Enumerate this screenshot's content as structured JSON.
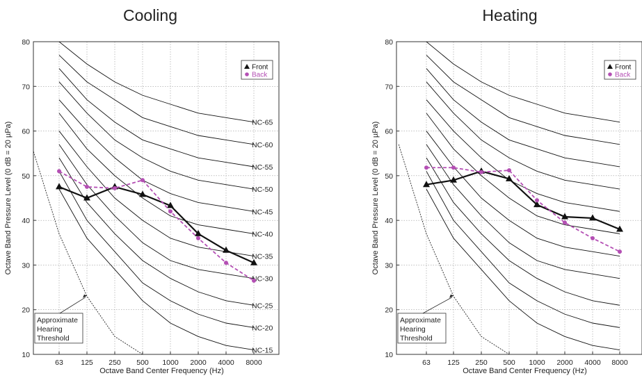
{
  "chart_data": [
    {
      "type": "line",
      "title": "Cooling",
      "xlabel": "Octave Band Center Frequency (Hz)",
      "ylabel": "Octave Band Pressure Level (0 dB = 20 µPa)",
      "categories": [
        "63",
        "125",
        "250",
        "500",
        "1000",
        "2000",
        "4000",
        "8000"
      ],
      "ylim": [
        10,
        80
      ],
      "yticks": [
        "10",
        "20",
        "30",
        "40",
        "50",
        "60",
        "70",
        "80"
      ],
      "grid": true,
      "legend_position": "top-right",
      "series": [
        {
          "name": "Front",
          "color": "#111111",
          "marker": "triangle",
          "style": "solid",
          "values": [
            47.5,
            45,
            47.5,
            45.8,
            43.3,
            37,
            33.3,
            30.5
          ]
        },
        {
          "name": "Back",
          "color": "#b44fb4",
          "marker": "circle",
          "style": "dashed",
          "values": [
            51,
            47.5,
            47.2,
            49,
            42,
            36,
            30.5,
            26.5
          ]
        }
      ],
      "nc_curves": [
        {
          "label": "NC-65",
          "values": [
            80,
            75,
            71,
            68,
            66,
            64,
            63,
            62
          ]
        },
        {
          "label": "NC-60",
          "values": [
            77,
            71,
            67,
            63,
            61,
            59,
            58,
            57
          ]
        },
        {
          "label": "NC-55",
          "values": [
            74,
            67,
            62,
            58,
            56,
            54,
            53,
            52
          ]
        },
        {
          "label": "NC-50",
          "values": [
            71,
            64,
            58,
            54,
            51,
            49,
            48,
            47
          ]
        },
        {
          "label": "NC-45",
          "values": [
            67,
            60,
            54,
            49,
            46,
            44,
            43,
            42
          ]
        },
        {
          "label": "NC-40",
          "values": [
            64,
            56,
            50,
            45,
            41,
            39,
            38,
            37
          ]
        },
        {
          "label": "NC-35",
          "values": [
            60,
            52,
            45,
            40,
            36,
            34,
            33,
            32
          ]
        },
        {
          "label": "NC-30",
          "values": [
            57,
            48,
            41,
            35,
            31,
            29,
            28,
            27
          ]
        },
        {
          "label": "NC-25",
          "values": [
            54,
            44,
            37,
            31,
            27,
            24,
            22,
            21
          ]
        },
        {
          "label": "NC-20",
          "values": [
            51,
            40,
            33,
            26,
            22,
            19,
            17,
            16
          ]
        },
        {
          "label": "NC-15",
          "values": [
            47,
            36,
            29,
            22,
            17,
            14,
            12,
            11
          ]
        }
      ],
      "threshold_curve": {
        "points": [
          [
            -1,
            57
          ],
          [
            0,
            37
          ],
          [
            1,
            23
          ],
          [
            2,
            14
          ],
          [
            3,
            10
          ]
        ]
      },
      "annotation": {
        "lines": [
          "Approximate",
          "Hearing",
          "Threshold"
        ]
      }
    },
    {
      "type": "line",
      "title": "Heating",
      "xlabel": "Octave Band Center Frequency (Hz)",
      "ylabel": "Octave Band Pressure Level (0 dB = 20 µPa)",
      "categories": [
        "63",
        "125",
        "250",
        "500",
        "1000",
        "2000",
        "4000",
        "8000"
      ],
      "ylim": [
        10,
        80
      ],
      "yticks": [
        "10",
        "20",
        "30",
        "40",
        "50",
        "60",
        "70",
        "80"
      ],
      "grid": true,
      "legend_position": "top-right",
      "series": [
        {
          "name": "Front",
          "color": "#111111",
          "marker": "triangle",
          "style": "solid",
          "values": [
            48,
            49,
            51,
            49.3,
            43.5,
            40.8,
            40.5,
            38
          ]
        },
        {
          "name": "Back",
          "color": "#b44fb4",
          "marker": "circle",
          "style": "dashed",
          "values": [
            51.8,
            51.8,
            50.8,
            51.2,
            44.5,
            39.5,
            36,
            33
          ]
        }
      ],
      "nc_curves": [
        {
          "label": "",
          "values": [
            80,
            75,
            71,
            68,
            66,
            64,
            63,
            62
          ]
        },
        {
          "label": "",
          "values": [
            77,
            71,
            67,
            63,
            61,
            59,
            58,
            57
          ]
        },
        {
          "label": "",
          "values": [
            74,
            67,
            62,
            58,
            56,
            54,
            53,
            52
          ]
        },
        {
          "label": "",
          "values": [
            71,
            64,
            58,
            54,
            51,
            49,
            48,
            47
          ]
        },
        {
          "label": "",
          "values": [
            67,
            60,
            54,
            49,
            46,
            44,
            43,
            42
          ]
        },
        {
          "label": "",
          "values": [
            64,
            56,
            50,
            45,
            41,
            39,
            38,
            37
          ]
        },
        {
          "label": "",
          "values": [
            60,
            52,
            45,
            40,
            36,
            34,
            33,
            32
          ]
        },
        {
          "label": "",
          "values": [
            57,
            48,
            41,
            35,
            31,
            29,
            28,
            27
          ]
        },
        {
          "label": "",
          "values": [
            54,
            44,
            37,
            31,
            27,
            24,
            22,
            21
          ]
        },
        {
          "label": "",
          "values": [
            51,
            40,
            33,
            26,
            22,
            19,
            17,
            16
          ]
        },
        {
          "label": "",
          "values": [
            47,
            36,
            29,
            22,
            17,
            14,
            12,
            11
          ]
        }
      ],
      "threshold_curve": {
        "points": [
          [
            -1,
            57
          ],
          [
            0,
            37
          ],
          [
            1,
            23
          ],
          [
            2,
            14
          ],
          [
            3,
            10
          ]
        ]
      },
      "annotation": {
        "lines": [
          "Approximate",
          "Hearing",
          "Threshold"
        ]
      }
    }
  ]
}
